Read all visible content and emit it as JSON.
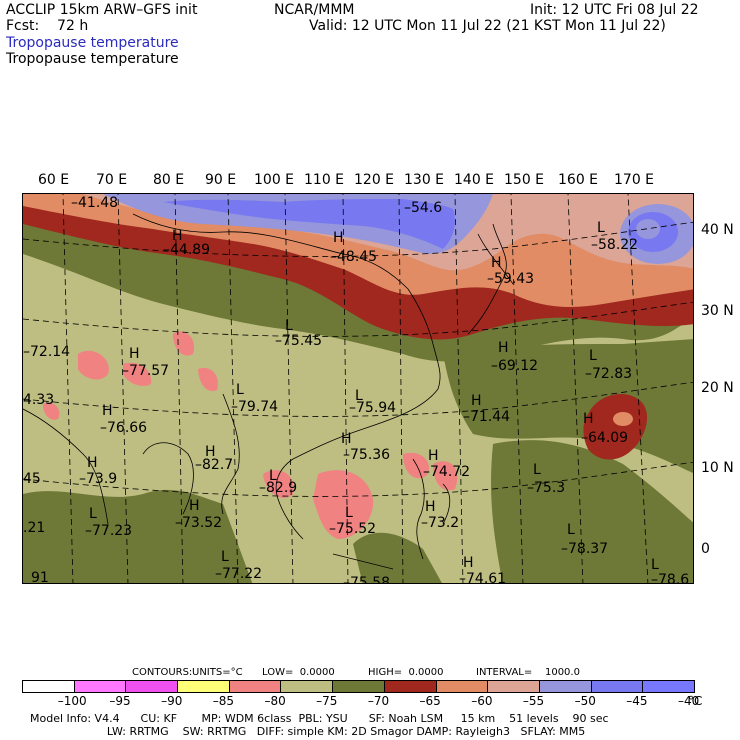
{
  "header": {
    "model": "ACCLIP 15km ARW–GFS init",
    "fcst": "Fcst:    72 h",
    "org": "NCAR/MMM",
    "init": "Init: 12 UTC Fri 08 Jul 22",
    "valid": "Valid: 12 UTC Mon 11 Jul 22 (21 KST Mon 11 Jul 22)",
    "field_blue": "Tropopause temperature",
    "field_black": "Tropopause temperature"
  },
  "lon_labels": [
    "60 E",
    "70 E",
    "80 E",
    "90 E",
    "100 E",
    "110 E",
    "120 E",
    "130 E",
    "140 E",
    "150 E",
    "160 E",
    "170 E"
  ],
  "lat_labels": [
    "40 N",
    "30 N",
    "20 N",
    "10 N",
    "0"
  ],
  "map_labels": [
    {
      "text": "–41.48"
    },
    {
      "text": "–54.6"
    },
    {
      "text": "H"
    },
    {
      "text": "–44.89"
    },
    {
      "text": "H"
    },
    {
      "text": "–48.45"
    },
    {
      "text": "L"
    },
    {
      "text": "–58.22"
    },
    {
      "text": "H"
    },
    {
      "text": "–59.43"
    },
    {
      "text": "L"
    },
    {
      "text": "–75.45"
    },
    {
      "text": "–72.14"
    },
    {
      "text": "H"
    },
    {
      "text": "–77.57"
    },
    {
      "text": "H"
    },
    {
      "text": "–69.12"
    },
    {
      "text": "L"
    },
    {
      "text": "–72.83"
    },
    {
      "text": "4.33"
    },
    {
      "text": "L"
    },
    {
      "text": "–79.74"
    },
    {
      "text": "L"
    },
    {
      "text": "–75.94"
    },
    {
      "text": "H"
    },
    {
      "text": "–71.44"
    },
    {
      "text": "H"
    },
    {
      "text": "–76.66"
    },
    {
      "text": "H"
    },
    {
      "text": "–64.09"
    },
    {
      "text": "H"
    },
    {
      "text": "–75.36"
    },
    {
      "text": "H"
    },
    {
      "text": "–82.7"
    },
    {
      "text": "H"
    },
    {
      "text": "–74.72"
    },
    {
      "text": "H"
    },
    {
      "text": "–73.9"
    },
    {
      "text": "L"
    },
    {
      "text": "–75.3"
    },
    {
      "text": "45"
    },
    {
      "text": "L"
    },
    {
      "text": "–82.9"
    },
    {
      "text": "L"
    },
    {
      "text": "–77.23"
    },
    {
      "text": "H"
    },
    {
      "text": "–73.52"
    },
    {
      "text": "L"
    },
    {
      "text": "–75.52"
    },
    {
      "text": "H"
    },
    {
      "text": "–73.2"
    },
    {
      "text": "L"
    },
    {
      "text": "–78.37"
    },
    {
      "text": ".21"
    },
    {
      "text": "L"
    },
    {
      "text": "–77.22"
    },
    {
      "text": "H"
    },
    {
      "text": "–74.61"
    },
    {
      "text": "–75.58"
    },
    {
      "text": "L"
    },
    {
      "text": "–78.6"
    },
    {
      "text": "91"
    }
  ],
  "contour_info": {
    "contours": "CONTOURS:",
    "units": "UNITS=°C",
    "low": "LOW=  0.0000",
    "high": "HIGH=  0.0000",
    "interval": "INTERVAL=    1000.0"
  },
  "colorbar": {
    "labels": [
      "–100",
      "–95",
      "–90",
      "–85",
      "–80",
      "–75",
      "–70",
      "–65",
      "–60",
      "–55",
      "–50",
      "–45",
      "–40"
    ],
    "unit": "°C",
    "colors": [
      "#ffffff",
      "#ff78ff",
      "#f050f0",
      "#ffff78",
      "#f08282",
      "#bebe82",
      "#6e7837",
      "#a0281e",
      "#e18c64",
      "#dca596",
      "#9696dc",
      "#7878f0",
      "#7878ff"
    ]
  },
  "footer": {
    "line1": "Model Info: V4.4      CU: KF       MP: WDM 6class  PBL: YSU      SF: Noah LSM     15 km    51 levels    90 sec",
    "line2": "                      LW: RRTMG    SW: RRTMG   DIFF: simple KM: 2D Smagor DAMP: Rayleigh3   SFLAY: MM5"
  },
  "map_colors": {
    "olive_light": "#bebe82",
    "olive_dark": "#6e7837",
    "red": "#a0281e",
    "orange": "#e18c64",
    "salmon": "#dca596",
    "lavender": "#9696dc",
    "blue": "#7878f0",
    "pink": "#f08282"
  }
}
